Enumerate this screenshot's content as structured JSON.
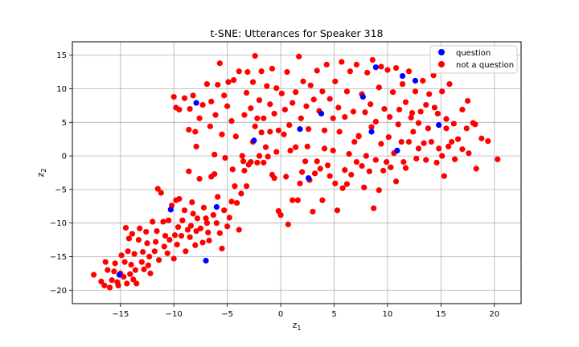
{
  "chart_data": {
    "type": "scatter",
    "title": "t-SNE: Utterances for Speaker 318",
    "xlabel": "z",
    "xlabel_sub": "1",
    "ylabel": "z",
    "ylabel_sub": "2",
    "xlim": [
      -19.5,
      22.5
    ],
    "ylim": [
      -22,
      17
    ],
    "xticks": [
      -15,
      -10,
      -5,
      0,
      5,
      10,
      15,
      20
    ],
    "yticks": [
      -20,
      -15,
      -10,
      -5,
      0,
      5,
      10,
      15
    ],
    "xtick_labels": [
      "−15",
      "−10",
      "−5",
      "0",
      "5",
      "10",
      "15",
      "20"
    ],
    "ytick_labels": [
      "−20",
      "−15",
      "−10",
      "−5",
      "0",
      "5",
      "10",
      "15"
    ],
    "grid": true,
    "legend_position": "top-right",
    "series": [
      {
        "name": "not a question",
        "color": "#ff0000",
        "points": [
          [
            -17.5,
            -17.7
          ],
          [
            -16.8,
            -18.7
          ],
          [
            -16.5,
            -19.3
          ],
          [
            -16.4,
            -15.8
          ],
          [
            -16.2,
            -17.0
          ],
          [
            -16.0,
            -19.6
          ],
          [
            -15.8,
            -18.5
          ],
          [
            -15.6,
            -17.2
          ],
          [
            -15.5,
            -16.0
          ],
          [
            -15.3,
            -18.8
          ],
          [
            -15.2,
            -19.3
          ],
          [
            -15.0,
            -17.5
          ],
          [
            -14.9,
            -14.8
          ],
          [
            -14.7,
            -18.0
          ],
          [
            -14.6,
            -15.8
          ],
          [
            -14.5,
            -10.7
          ],
          [
            -14.4,
            -19.0
          ],
          [
            -14.3,
            -14.2
          ],
          [
            -14.2,
            -12.3
          ],
          [
            -14.1,
            -17.6
          ],
          [
            -14.0,
            -16.2
          ],
          [
            -13.9,
            -11.6
          ],
          [
            -13.8,
            -18.4
          ],
          [
            -13.7,
            -14.6
          ],
          [
            -13.6,
            -17.0
          ],
          [
            -13.5,
            -19.0
          ],
          [
            -13.3,
            -12.5
          ],
          [
            -13.2,
            -10.8
          ],
          [
            -13.0,
            -15.8
          ],
          [
            -12.9,
            -14.3
          ],
          [
            -12.8,
            -16.9
          ],
          [
            -12.6,
            -11.3
          ],
          [
            -12.5,
            -13.0
          ],
          [
            -12.4,
            -16.3
          ],
          [
            -12.3,
            -15.0
          ],
          [
            -12.2,
            -17.5
          ],
          [
            -12.0,
            -9.8
          ],
          [
            -11.8,
            -14.2
          ],
          [
            -11.7,
            -12.8
          ],
          [
            -11.6,
            -11.2
          ],
          [
            -11.5,
            -4.9
          ],
          [
            -11.4,
            -15.5
          ],
          [
            -11.2,
            -5.5
          ],
          [
            -11.0,
            -9.8
          ],
          [
            -10.9,
            -13.5
          ],
          [
            -10.8,
            -11.9
          ],
          [
            -10.6,
            -14.5
          ],
          [
            -10.5,
            -9.6
          ],
          [
            -10.4,
            -12.5
          ],
          [
            -10.2,
            -7.4
          ],
          [
            -10.0,
            -15.3
          ],
          [
            -9.9,
            -11.8
          ],
          [
            -9.8,
            -6.6
          ],
          [
            -9.7,
            -13.2
          ],
          [
            -9.6,
            -10.6
          ],
          [
            -9.5,
            -6.4
          ],
          [
            -9.3,
            -11.9
          ],
          [
            -9.2,
            -9.6
          ],
          [
            -9.0,
            -8.1
          ],
          [
            -8.9,
            -14.2
          ],
          [
            -8.7,
            -11.0
          ],
          [
            -8.6,
            -2.3
          ],
          [
            -8.5,
            -12.1
          ],
          [
            -8.4,
            -10.4
          ],
          [
            -8.3,
            -6.9
          ],
          [
            -8.2,
            -8.6
          ],
          [
            -8.0,
            -13.3
          ],
          [
            -7.9,
            -11.2
          ],
          [
            -7.8,
            -9.3
          ],
          [
            -7.6,
            -3.4
          ],
          [
            -7.5,
            -10.8
          ],
          [
            -7.3,
            -12.9
          ],
          [
            -7.2,
            -7.7
          ],
          [
            -7.0,
            -9.3
          ],
          [
            -6.9,
            -10.0
          ],
          [
            -6.8,
            -11.4
          ],
          [
            -6.7,
            -12.6
          ],
          [
            -6.5,
            -3.1
          ],
          [
            -6.3,
            -8.8
          ],
          [
            -6.2,
            -2.7
          ],
          [
            -6.0,
            -10.0
          ],
          [
            -5.9,
            -6.1
          ],
          [
            -5.7,
            -11.5
          ],
          [
            -5.5,
            -13.8
          ],
          [
            -5.3,
            -8.1
          ],
          [
            -5.2,
            -0.3
          ],
          [
            -5.0,
            -10.5
          ],
          [
            -4.8,
            -9.2
          ],
          [
            -4.6,
            -6.8
          ],
          [
            -4.5,
            -2.0
          ],
          [
            -4.3,
            -4.5
          ],
          [
            -4.1,
            -7.0
          ],
          [
            -3.9,
            -11.0
          ],
          [
            -3.7,
            -5.6
          ],
          [
            -3.5,
            -0.8
          ],
          [
            -3.4,
            -2.2
          ],
          [
            -3.2,
            -4.5
          ],
          [
            -3.0,
            -1.3
          ],
          [
            -2.8,
            -0.9
          ],
          [
            -2.6,
            2.1
          ],
          [
            -2.4,
            4.4
          ],
          [
            -2.2,
            -1.0
          ],
          [
            -2.0,
            0.0
          ],
          [
            -1.8,
            3.5
          ],
          [
            -1.6,
            -1.0
          ],
          [
            -1.4,
            1.3
          ],
          [
            -1.2,
            -0.1
          ],
          [
            -1.0,
            3.6
          ],
          [
            -0.8,
            -2.8
          ],
          [
            -0.6,
            -3.3
          ],
          [
            -0.4,
            0.6
          ],
          [
            -0.2,
            -8.2
          ],
          [
            0.0,
            -8.8
          ],
          [
            0.3,
            3.2
          ],
          [
            0.5,
            -3.1
          ],
          [
            0.7,
            -10.2
          ],
          [
            0.9,
            0.8
          ],
          [
            1.1,
            -6.6
          ],
          [
            1.4,
            1.3
          ],
          [
            1.6,
            -6.6
          ],
          [
            1.8,
            -4.1
          ],
          [
            2.0,
            -2.4
          ],
          [
            2.3,
            -0.8
          ],
          [
            2.5,
            1.4
          ],
          [
            2.7,
            -3.6
          ],
          [
            3.0,
            -8.3
          ],
          [
            3.2,
            -2.6
          ],
          [
            3.4,
            -0.8
          ],
          [
            3.7,
            -1.9
          ],
          [
            3.9,
            -6.6
          ],
          [
            4.1,
            1.1
          ],
          [
            4.4,
            -1.4
          ],
          [
            4.6,
            -3.0
          ],
          [
            4.9,
            0.8
          ],
          [
            5.1,
            -4.1
          ],
          [
            5.3,
            -8.1
          ],
          [
            5.5,
            3.6
          ],
          [
            5.8,
            -4.8
          ],
          [
            6.0,
            -2.1
          ],
          [
            6.2,
            -4.2
          ],
          [
            6.4,
            0.3
          ],
          [
            6.6,
            -2.8
          ],
          [
            6.9,
            2.1
          ],
          [
            7.1,
            -0.9
          ],
          [
            7.3,
            3.0
          ],
          [
            7.6,
            -1.5
          ],
          [
            7.8,
            -4.7
          ],
          [
            8.0,
            0.0
          ],
          [
            8.3,
            -2.3
          ],
          [
            8.5,
            4.3
          ],
          [
            8.7,
            -7.8
          ],
          [
            8.9,
            -0.6
          ],
          [
            9.2,
            -5.1
          ],
          [
            9.4,
            1.8
          ],
          [
            9.6,
            -2.2
          ],
          [
            9.9,
            -0.9
          ],
          [
            10.1,
            2.8
          ],
          [
            10.3,
            -1.7
          ],
          [
            10.6,
            0.4
          ],
          [
            10.8,
            -3.8
          ],
          [
            11.0,
            4.7
          ],
          [
            11.3,
            2.1
          ],
          [
            11.5,
            -0.9
          ],
          [
            11.7,
            -1.8
          ],
          [
            12.0,
            2.1
          ],
          [
            12.2,
            5.7
          ],
          [
            12.4,
            3.6
          ],
          [
            12.7,
            -0.4
          ],
          [
            12.9,
            1.1
          ],
          [
            13.1,
            6.6
          ],
          [
            13.4,
            1.9
          ],
          [
            13.6,
            -0.6
          ],
          [
            13.8,
            4.1
          ],
          [
            14.1,
            2.1
          ],
          [
            14.4,
            7.2
          ],
          [
            14.6,
            -1.0
          ],
          [
            14.8,
            1.1
          ],
          [
            15.1,
            0.0
          ],
          [
            15.3,
            -3.0
          ],
          [
            15.5,
            4.1
          ],
          [
            15.7,
            1.4
          ],
          [
            16.0,
            2.1
          ],
          [
            16.3,
            -0.5
          ],
          [
            16.6,
            2.5
          ],
          [
            17.0,
            1.0
          ],
          [
            17.4,
            4.1
          ],
          [
            17.6,
            0.4
          ],
          [
            18.0,
            4.9
          ],
          [
            18.3,
            -1.9
          ],
          [
            18.8,
            2.6
          ],
          [
            19.4,
            2.2
          ],
          [
            20.3,
            -0.5
          ],
          [
            -10.0,
            8.8
          ],
          [
            -9.8,
            7.2
          ],
          [
            -9.5,
            6.9
          ],
          [
            -9.0,
            8.6
          ],
          [
            -8.6,
            3.9
          ],
          [
            -8.5,
            7.0
          ],
          [
            -8.2,
            9.0
          ],
          [
            -8.0,
            3.6
          ],
          [
            -7.9,
            1.4
          ],
          [
            -7.6,
            5.6
          ],
          [
            -7.3,
            7.6
          ],
          [
            -6.9,
            10.7
          ],
          [
            -6.6,
            4.4
          ],
          [
            -6.5,
            8.1
          ],
          [
            -6.2,
            0.2
          ],
          [
            -6.1,
            6.1
          ],
          [
            -5.9,
            10.6
          ],
          [
            -5.7,
            13.8
          ],
          [
            -5.5,
            3.2
          ],
          [
            -5.3,
            9.0
          ],
          [
            -5.0,
            7.4
          ],
          [
            -4.9,
            11.0
          ],
          [
            -4.6,
            5.2
          ],
          [
            -4.4,
            11.3
          ],
          [
            -4.2,
            2.9
          ],
          [
            -3.9,
            12.6
          ],
          [
            -3.6,
            0.0
          ],
          [
            -3.4,
            6.1
          ],
          [
            -3.2,
            9.4
          ],
          [
            -3.1,
            12.5
          ],
          [
            -2.8,
            7.1
          ],
          [
            -2.6,
            11.0
          ],
          [
            -2.4,
            14.9
          ],
          [
            -2.2,
            5.6
          ],
          [
            -2.0,
            8.3
          ],
          [
            -1.8,
            12.6
          ],
          [
            -1.6,
            5.6
          ],
          [
            -1.3,
            10.4
          ],
          [
            -1.0,
            7.7
          ],
          [
            -0.8,
            13.0
          ],
          [
            -0.6,
            6.3
          ],
          [
            -0.4,
            10.1
          ],
          [
            -0.2,
            3.8
          ],
          [
            0.1,
            9.3
          ],
          [
            0.4,
            6.9
          ],
          [
            0.6,
            12.5
          ],
          [
            0.8,
            4.6
          ],
          [
            1.1,
            7.9
          ],
          [
            1.4,
            9.5
          ],
          [
            1.7,
            14.8
          ],
          [
            1.9,
            5.6
          ],
          [
            2.1,
            11.1
          ],
          [
            2.4,
            7.4
          ],
          [
            2.6,
            4.0
          ],
          [
            2.8,
            10.5
          ],
          [
            3.1,
            8.4
          ],
          [
            3.4,
            12.7
          ],
          [
            3.6,
            6.7
          ],
          [
            3.9,
            9.6
          ],
          [
            4.1,
            3.8
          ],
          [
            4.3,
            13.6
          ],
          [
            4.6,
            8.5
          ],
          [
            4.9,
            5.6
          ],
          [
            5.1,
            11.1
          ],
          [
            5.4,
            7.2
          ],
          [
            5.7,
            14.0
          ],
          [
            6.0,
            5.8
          ],
          [
            6.2,
            9.6
          ],
          [
            6.5,
            12.6
          ],
          [
            6.8,
            6.6
          ],
          [
            7.1,
            13.6
          ],
          [
            7.3,
            2.9
          ],
          [
            7.6,
            9.2
          ],
          [
            7.9,
            6.5
          ],
          [
            8.1,
            12.4
          ],
          [
            8.4,
            7.7
          ],
          [
            8.6,
            14.3
          ],
          [
            8.9,
            5.1
          ],
          [
            9.2,
            10.2
          ],
          [
            9.4,
            13.3
          ],
          [
            9.7,
            7.0
          ],
          [
            10.0,
            12.8
          ],
          [
            10.2,
            5.8
          ],
          [
            10.5,
            9.5
          ],
          [
            10.8,
            13.1
          ],
          [
            11.1,
            6.9
          ],
          [
            11.4,
            10.7
          ],
          [
            11.7,
            8.0
          ],
          [
            12.0,
            12.6
          ],
          [
            12.3,
            6.4
          ],
          [
            12.6,
            9.6
          ],
          [
            12.9,
            4.9
          ],
          [
            13.3,
            11.2
          ],
          [
            13.6,
            7.6
          ],
          [
            13.9,
            9.2
          ],
          [
            14.3,
            12.0
          ],
          [
            14.7,
            6.3
          ],
          [
            15.1,
            9.6
          ],
          [
            15.5,
            5.5
          ],
          [
            15.8,
            10.7
          ],
          [
            16.2,
            4.8
          ],
          [
            17.0,
            6.9
          ],
          [
            17.5,
            8.2
          ],
          [
            18.2,
            4.7
          ]
        ]
      },
      {
        "name": "question",
        "color": "#0000ff",
        "points": [
          [
            -15.1,
            -17.7
          ],
          [
            -10.3,
            -8.0
          ],
          [
            -7.9,
            7.9
          ],
          [
            -6.0,
            -7.6
          ],
          [
            -7.0,
            -15.6
          ],
          [
            -2.5,
            2.3
          ],
          [
            1.8,
            4.0
          ],
          [
            2.6,
            -3.3
          ],
          [
            3.8,
            6.3
          ],
          [
            7.7,
            8.8
          ],
          [
            8.5,
            3.6
          ],
          [
            8.9,
            13.2
          ],
          [
            10.9,
            0.8
          ],
          [
            11.4,
            11.9
          ],
          [
            12.6,
            11.2
          ],
          [
            14.8,
            4.6
          ]
        ]
      }
    ]
  }
}
